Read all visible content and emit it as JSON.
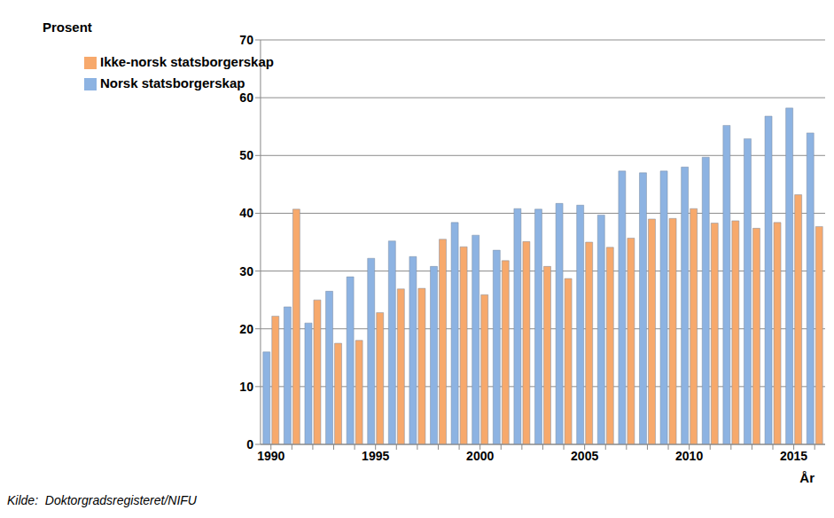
{
  "chart_data": {
    "type": "bar",
    "ylabel": "Prosent",
    "xlabel": "År",
    "annotations": [
      "Kilde:  Doktorgradsregisteret/NIFU"
    ],
    "categories": [
      "1990",
      null,
      null,
      null,
      null,
      "1995",
      null,
      null,
      null,
      null,
      "2000",
      null,
      null,
      null,
      null,
      "2005",
      null,
      null,
      null,
      null,
      "2010",
      null,
      null,
      null,
      null,
      "2015",
      null
    ],
    "series": [
      {
        "name": "Norsk statsborgerskap",
        "color": "#8db3e2",
        "values": [
          16,
          23.8,
          21,
          26.5,
          29,
          32.2,
          35.2,
          32.5,
          30.8,
          38.4,
          36.2,
          33.6,
          40.8,
          40.7,
          41.7,
          41.4,
          39.7,
          47.3,
          47,
          47.3,
          48,
          49.7,
          55.2,
          52.9,
          56.8,
          58.2,
          53.9
        ]
      },
      {
        "name": "Ikke-norsk statsborgerskap",
        "color": "#f7a96c",
        "values": [
          22.2,
          40.7,
          25,
          17.5,
          18,
          22.8,
          26.9,
          27,
          35.5,
          34.2,
          25.9,
          31.8,
          35.1,
          30.8,
          28.7,
          35,
          34.1,
          35.7,
          39,
          39.1,
          40.8,
          38.3,
          38.7,
          37.4,
          38.4,
          43.2,
          37.7
        ]
      }
    ],
    "ylim": [
      0,
      70
    ],
    "yticks": [
      0,
      10,
      20,
      30,
      40,
      50,
      60,
      70
    ],
    "grid": true,
    "legend": "upper left"
  }
}
